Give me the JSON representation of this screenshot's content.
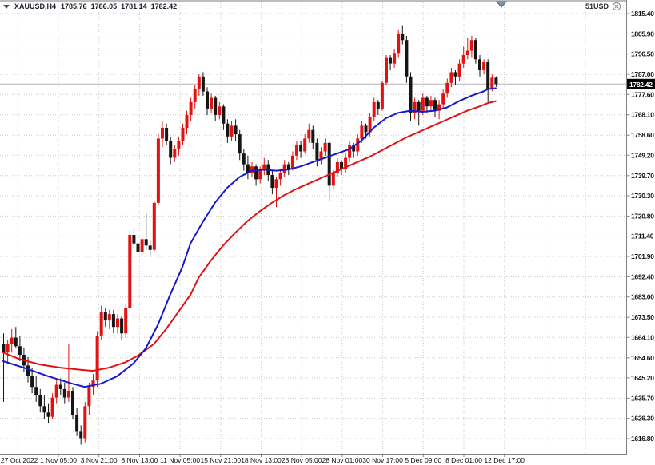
{
  "header": {
    "symbol": "XAUUSD,H4",
    "open": "1785.76",
    "high": "1786.05",
    "low": "1781.14",
    "close": "1782.42"
  },
  "overlay": {
    "balance": "51USD",
    "close_icon": "circle-x-icon",
    "shift_marker_icon": "triangle-down-icon"
  },
  "colors": {
    "bull_candle": "#e31212",
    "bear_candle": "#161616",
    "ma_fast": "#1717cc",
    "ma_slow": "#e31212",
    "grid": "#cccccc",
    "border": "#808080",
    "current_price_line": "#b4b4b4",
    "tag_bg": "#000000",
    "tag_text": "#ffffff",
    "marker_fill": "#7d94a9",
    "marker_stroke": "#56687c",
    "axis_text": "#111111"
  },
  "price_axis": {
    "tag": "1782.42",
    "ticks": [
      "1815.40",
      "1805.90",
      "1796.50",
      "1787.00",
      "1777.60",
      "1768.10",
      "1758.60",
      "1749.20",
      "1739.70",
      "1730.30",
      "1720.80",
      "1711.40",
      "1701.90",
      "1692.40",
      "1683.00",
      "1673.50",
      "1664.10",
      "1654.60",
      "1645.20",
      "1635.70",
      "1626.30",
      "1616.80"
    ]
  },
  "time_axis": {
    "labels": [
      "27 Oct 2022",
      "1 Nov 05:00",
      "3 Nov 21:00",
      "8 Nov 13:00",
      "11 Nov 05:00",
      "15 Nov 21:00",
      "18 Nov 13:00",
      "23 Nov 05:00",
      "28 Nov 01:00",
      "30 Nov 17:00",
      "5 Dec 09:00",
      "8 Dec 01:00",
      "12 Dec 17:00"
    ]
  },
  "chart_data": {
    "type": "candlestick",
    "symbol": "XAUUSD",
    "timeframe": "H4",
    "title": "XAUUSD,H4",
    "current_price": 1782.42,
    "y_range": [
      1616.8,
      1815.4
    ],
    "grid": true,
    "candles": [
      [
        1661,
        1666,
        1634,
        1657
      ],
      [
        1657,
        1663,
        1652,
        1661
      ],
      [
        1661,
        1668,
        1657,
        1664
      ],
      [
        1664,
        1669,
        1659,
        1660
      ],
      [
        1660,
        1665,
        1653,
        1656
      ],
      [
        1656,
        1659,
        1648,
        1651
      ],
      [
        1651,
        1655,
        1643,
        1646
      ],
      [
        1646,
        1650,
        1638,
        1641
      ],
      [
        1641,
        1646,
        1634,
        1637
      ],
      [
        1637,
        1640,
        1629,
        1632
      ],
      [
        1632,
        1637,
        1626,
        1629
      ],
      [
        1629,
        1633,
        1624,
        1627
      ],
      [
        1627,
        1638,
        1626,
        1636
      ],
      [
        1636,
        1644,
        1633,
        1642
      ],
      [
        1642,
        1645,
        1637,
        1640
      ],
      [
        1640,
        1643,
        1633,
        1636
      ],
      [
        1636,
        1661,
        1634,
        1639
      ],
      [
        1639,
        1641,
        1626,
        1628
      ],
      [
        1628,
        1631,
        1618,
        1620
      ],
      [
        1620,
        1623,
        1614,
        1617
      ],
      [
        1617,
        1634,
        1615,
        1632
      ],
      [
        1632,
        1643,
        1628,
        1641
      ],
      [
        1641,
        1647,
        1637,
        1644
      ],
      [
        1644,
        1667,
        1641,
        1665
      ],
      [
        1665,
        1679,
        1663,
        1676
      ],
      [
        1676,
        1678,
        1669,
        1672
      ],
      [
        1672,
        1677,
        1668,
        1675
      ],
      [
        1675,
        1677,
        1666,
        1669
      ],
      [
        1669,
        1675,
        1666,
        1673
      ],
      [
        1673,
        1674,
        1663,
        1666
      ],
      [
        1666,
        1680,
        1664,
        1678
      ],
      [
        1678,
        1714,
        1677,
        1712
      ],
      [
        1712,
        1715,
        1706,
        1708
      ],
      [
        1708,
        1710,
        1701,
        1704
      ],
      [
        1704,
        1712,
        1702,
        1710
      ],
      [
        1710,
        1722,
        1705,
        1707
      ],
      [
        1707,
        1709,
        1702,
        1705
      ],
      [
        1705,
        1728,
        1704,
        1727
      ],
      [
        1727,
        1759,
        1726,
        1757
      ],
      [
        1757,
        1765,
        1753,
        1762
      ],
      [
        1762,
        1764,
        1754,
        1756
      ],
      [
        1756,
        1758,
        1745,
        1748
      ],
      [
        1748,
        1754,
        1746,
        1752
      ],
      [
        1752,
        1758,
        1749,
        1756
      ],
      [
        1756,
        1764,
        1754,
        1762
      ],
      [
        1762,
        1770,
        1759,
        1768
      ],
      [
        1768,
        1776,
        1765,
        1774
      ],
      [
        1774,
        1782,
        1771,
        1780
      ],
      [
        1780,
        1787,
        1777,
        1786
      ],
      [
        1786,
        1788,
        1777,
        1779
      ],
      [
        1779,
        1781,
        1768,
        1771
      ],
      [
        1771,
        1778,
        1769,
        1776
      ],
      [
        1776,
        1777,
        1765,
        1768
      ],
      [
        1768,
        1774,
        1766,
        1772
      ],
      [
        1772,
        1773,
        1761,
        1764
      ],
      [
        1764,
        1766,
        1755,
        1758
      ],
      [
        1758,
        1765,
        1756,
        1763
      ],
      [
        1763,
        1766,
        1756,
        1759
      ],
      [
        1759,
        1761,
        1747,
        1750
      ],
      [
        1750,
        1752,
        1742,
        1745
      ],
      [
        1745,
        1749,
        1738,
        1741
      ],
      [
        1741,
        1746,
        1739,
        1744
      ],
      [
        1744,
        1745,
        1735,
        1738
      ],
      [
        1738,
        1744,
        1736,
        1742
      ],
      [
        1742,
        1748,
        1740,
        1745
      ],
      [
        1745,
        1747,
        1737,
        1740
      ],
      [
        1740,
        1742,
        1731,
        1734
      ],
      [
        1734,
        1739,
        1725,
        1738
      ],
      [
        1738,
        1743,
        1735,
        1741
      ],
      [
        1741,
        1747,
        1739,
        1745
      ],
      [
        1745,
        1746,
        1740,
        1743
      ],
      [
        1743,
        1751,
        1742,
        1749
      ],
      [
        1749,
        1756,
        1747,
        1754
      ],
      [
        1754,
        1756,
        1748,
        1751
      ],
      [
        1751,
        1759,
        1750,
        1757
      ],
      [
        1757,
        1764,
        1755,
        1761
      ],
      [
        1761,
        1763,
        1752,
        1755
      ],
      [
        1755,
        1757,
        1744,
        1747
      ],
      [
        1747,
        1753,
        1745,
        1751
      ],
      [
        1751,
        1757,
        1749,
        1755
      ],
      [
        1755,
        1756,
        1728,
        1735
      ],
      [
        1735,
        1743,
        1733,
        1741
      ],
      [
        1741,
        1748,
        1739,
        1746
      ],
      [
        1746,
        1747,
        1740,
        1743
      ],
      [
        1743,
        1750,
        1741,
        1748
      ],
      [
        1748,
        1756,
        1746,
        1754
      ],
      [
        1754,
        1755,
        1748,
        1751
      ],
      [
        1751,
        1759,
        1749,
        1757
      ],
      [
        1757,
        1765,
        1755,
        1763
      ],
      [
        1763,
        1764,
        1757,
        1760
      ],
      [
        1760,
        1769,
        1758,
        1767
      ],
      [
        1767,
        1776,
        1765,
        1774
      ],
      [
        1774,
        1775,
        1768,
        1771
      ],
      [
        1771,
        1784,
        1770,
        1783
      ],
      [
        1783,
        1796,
        1782,
        1795
      ],
      [
        1795,
        1796,
        1789,
        1792
      ],
      [
        1792,
        1799,
        1790,
        1797
      ],
      [
        1797,
        1808,
        1795,
        1806
      ],
      [
        1806,
        1810,
        1801,
        1803
      ],
      [
        1803,
        1805,
        1783,
        1786
      ],
      [
        1786,
        1788,
        1765,
        1769
      ],
      [
        1769,
        1776,
        1766,
        1774
      ],
      [
        1774,
        1775,
        1763,
        1770
      ],
      [
        1770,
        1778,
        1768,
        1776
      ],
      [
        1776,
        1777,
        1769,
        1772
      ],
      [
        1772,
        1777,
        1770,
        1775
      ],
      [
        1775,
        1776,
        1767,
        1770
      ],
      [
        1770,
        1775,
        1766,
        1773
      ],
      [
        1773,
        1780,
        1771,
        1778
      ],
      [
        1778,
        1785,
        1776,
        1783
      ],
      [
        1783,
        1790,
        1781,
        1788
      ],
      [
        1788,
        1789,
        1782,
        1786
      ],
      [
        1786,
        1794,
        1784,
        1792
      ],
      [
        1792,
        1800,
        1790,
        1796
      ],
      [
        1796,
        1804,
        1794,
        1798
      ],
      [
        1798,
        1805,
        1795,
        1803
      ],
      [
        1803,
        1804,
        1792,
        1794
      ],
      [
        1794,
        1796,
        1786,
        1789
      ],
      [
        1789,
        1794,
        1787,
        1793
      ],
      [
        1793,
        1794,
        1774,
        1780
      ],
      [
        1780,
        1787,
        1779,
        1785.76
      ],
      [
        1785.76,
        1786.05,
        1781.14,
        1782.42
      ]
    ],
    "ma_fast_points": [
      [
        0,
        1653
      ],
      [
        5,
        1650
      ],
      [
        11,
        1646
      ],
      [
        17,
        1642.5
      ],
      [
        20,
        1641
      ],
      [
        24,
        1642.5
      ],
      [
        28,
        1646
      ],
      [
        32,
        1652
      ],
      [
        35,
        1659
      ],
      [
        38,
        1670
      ],
      [
        41,
        1684
      ],
      [
        44,
        1697
      ],
      [
        46,
        1708
      ],
      [
        49,
        1718
      ],
      [
        52,
        1727
      ],
      [
        55,
        1734
      ],
      [
        58,
        1739
      ],
      [
        61,
        1742
      ],
      [
        64,
        1742.5
      ],
      [
        67,
        1742
      ],
      [
        70,
        1742.5
      ],
      [
        73,
        1744
      ],
      [
        76,
        1746
      ],
      [
        79,
        1748
      ],
      [
        82,
        1750
      ],
      [
        85,
        1752
      ],
      [
        88,
        1756
      ],
      [
        91,
        1762
      ],
      [
        94,
        1766.5
      ],
      [
        97,
        1769
      ],
      [
        100,
        1770
      ],
      [
        103,
        1769.5
      ],
      [
        106,
        1770
      ],
      [
        109,
        1771.5
      ],
      [
        112,
        1774.5
      ],
      [
        115,
        1777
      ],
      [
        118,
        1779
      ],
      [
        119,
        1780
      ],
      [
        121,
        1780.5
      ]
    ],
    "ma_slow_points": [
      [
        0,
        1657
      ],
      [
        4,
        1654
      ],
      [
        9,
        1651.5
      ],
      [
        14,
        1650
      ],
      [
        19,
        1649
      ],
      [
        22,
        1648.5
      ],
      [
        26,
        1650
      ],
      [
        30,
        1652.5
      ],
      [
        33,
        1655.5
      ],
      [
        37,
        1661
      ],
      [
        40,
        1668
      ],
      [
        43,
        1676
      ],
      [
        46,
        1684
      ],
      [
        48,
        1692
      ],
      [
        51,
        1700
      ],
      [
        54,
        1707
      ],
      [
        57,
        1713
      ],
      [
        60,
        1718.5
      ],
      [
        63,
        1723
      ],
      [
        66,
        1727
      ],
      [
        69,
        1730.5
      ],
      [
        72,
        1733.5
      ],
      [
        75,
        1736
      ],
      [
        78,
        1738.5
      ],
      [
        81,
        1741
      ],
      [
        84,
        1743.5
      ],
      [
        87,
        1746
      ],
      [
        90,
        1748.5
      ],
      [
        93,
        1751.5
      ],
      [
        96,
        1754.5
      ],
      [
        99,
        1757.5
      ],
      [
        102,
        1760
      ],
      [
        105,
        1762.5
      ],
      [
        108,
        1765
      ],
      [
        111,
        1767.5
      ],
      [
        114,
        1770
      ],
      [
        117,
        1772
      ],
      [
        119,
        1773.5
      ],
      [
        121,
        1774.5
      ]
    ]
  }
}
